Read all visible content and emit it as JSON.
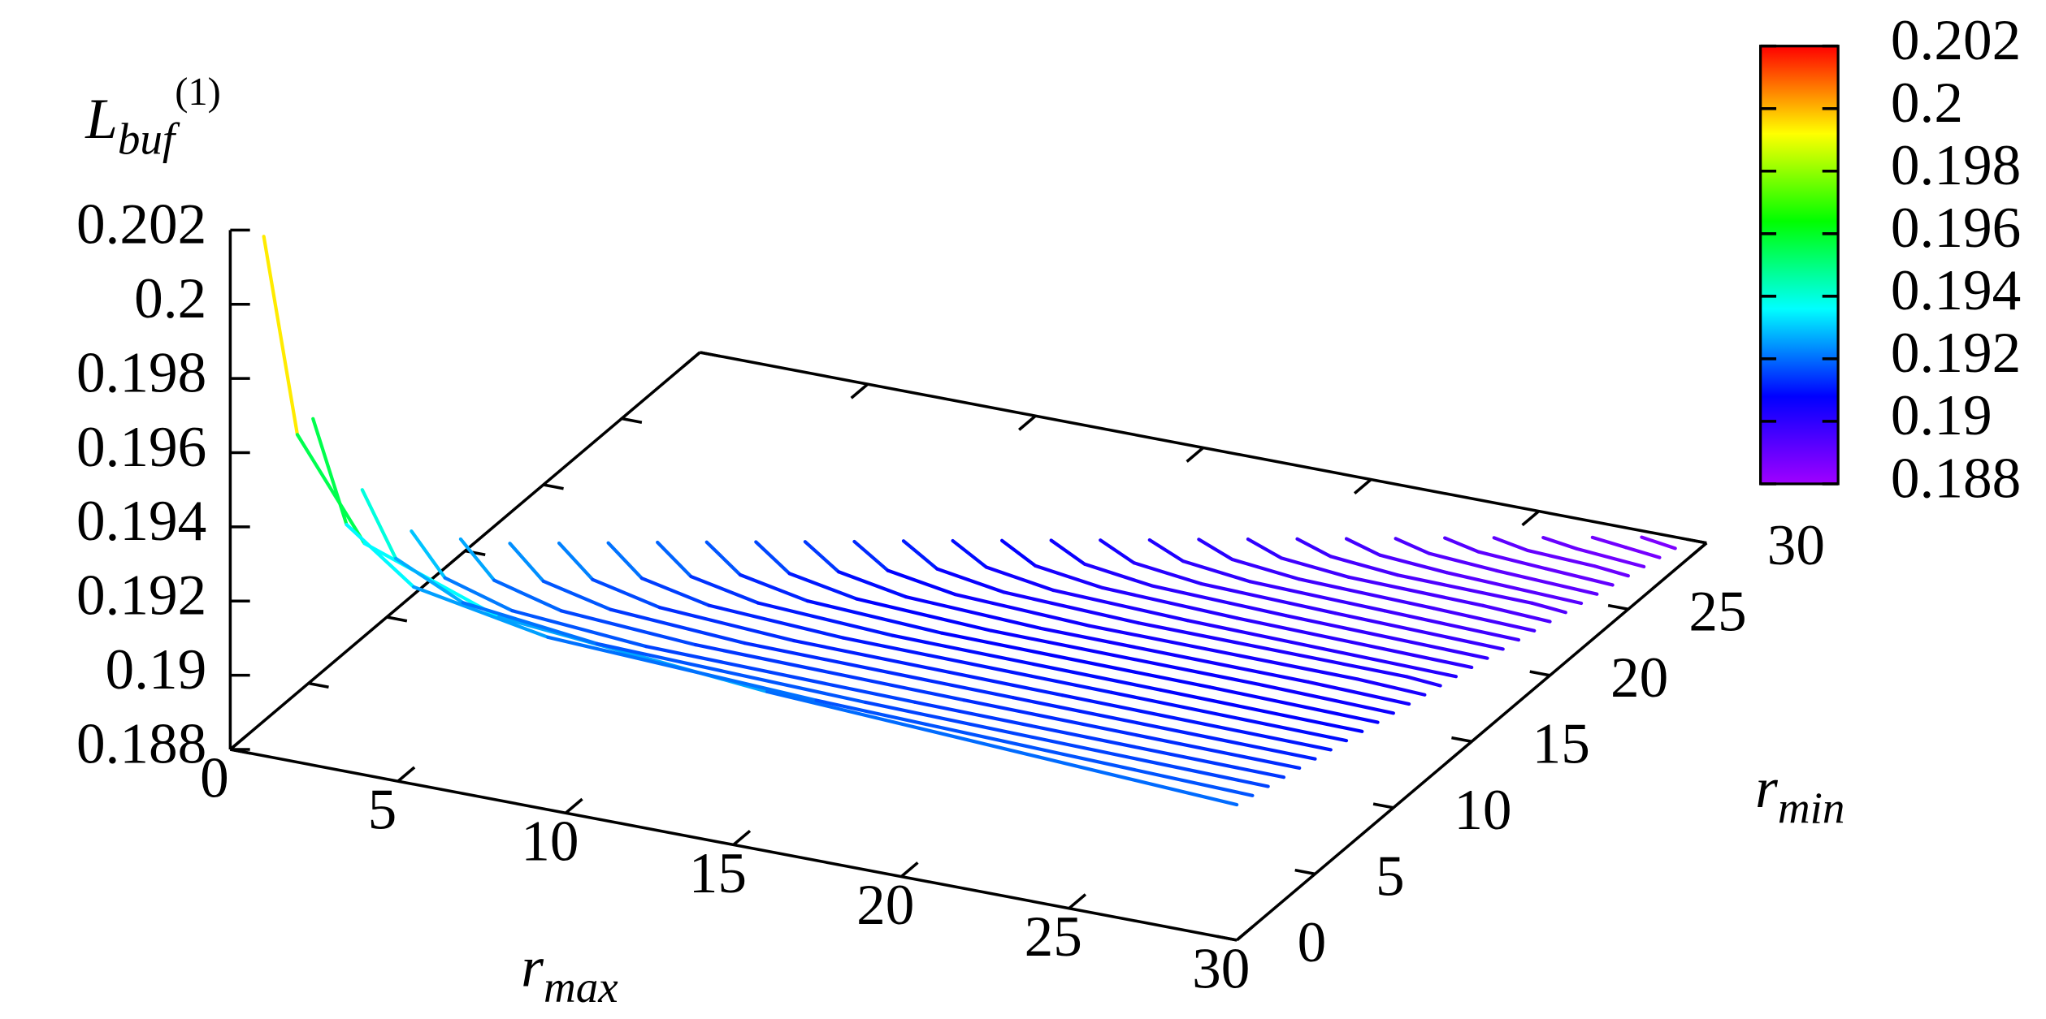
{
  "chart_data": {
    "type": "line3d",
    "xlabel": {
      "text": "r",
      "sub": "max"
    },
    "ylabel": {
      "text": "r",
      "sub": "min"
    },
    "zlabel": {
      "text": "L",
      "sub": "buf",
      "sup": "(1)"
    },
    "xlim": [
      0,
      30
    ],
    "xticks": [
      0,
      5,
      10,
      15,
      20,
      25,
      30
    ],
    "ylim": [
      0,
      30
    ],
    "yticks": [
      0,
      5,
      10,
      15,
      20,
      25,
      30
    ],
    "zlim": [
      0.188,
      0.202
    ],
    "zticks": [
      0.188,
      0.19,
      0.192,
      0.194,
      0.196,
      0.198,
      0.2,
      0.202
    ],
    "cblim": [
      0.188,
      0.202
    ],
    "cbticks": [
      0.188,
      0.19,
      0.192,
      0.194,
      0.196,
      0.198,
      0.2,
      0.202
    ],
    "palette": [
      "#a000ff",
      "#0000ff",
      "#00ffff",
      "#00ff00",
      "#ffff00",
      "#ff0000"
    ],
    "series": [
      {
        "rmin": 0,
        "x": [
          1,
          2,
          4,
          8,
          16,
          30
        ],
        "values": [
          0.202,
          0.19683,
          0.19424,
          0.19294,
          0.1923,
          0.19165
        ]
      },
      {
        "rmin": 1,
        "x": [
          2,
          3,
          5,
          9,
          17,
          30
        ],
        "values": [
          0.1969,
          0.19422,
          0.19288,
          0.19221,
          0.19188,
          0.19154
        ]
      },
      {
        "rmin": 2,
        "x": [
          3,
          4,
          6,
          10,
          18,
          30
        ],
        "values": [
          0.1948,
          0.19312,
          0.19227,
          0.19185,
          0.19164,
          0.19143
        ]
      },
      {
        "rmin": 3,
        "x": [
          4,
          5,
          7,
          11,
          19,
          30
        ],
        "values": [
          0.1935,
          0.19241,
          0.19187,
          0.19159,
          0.19146,
          0.19132
        ]
      },
      {
        "rmin": 4,
        "x": [
          5,
          6,
          8,
          12,
          20,
          30
        ],
        "values": [
          0.1931,
          0.19216,
          0.19168,
          0.19145,
          0.19133,
          0.19121
        ]
      },
      {
        "rmin": 5,
        "x": [
          6,
          7,
          9,
          13,
          21,
          30
        ],
        "values": [
          0.1928,
          0.19195,
          0.19153,
          0.19131,
          0.19121,
          0.1911
        ]
      },
      {
        "rmin": 6,
        "x": [
          7,
          8,
          10,
          14,
          22,
          30
        ],
        "values": [
          0.19262,
          0.19181,
          0.1914,
          0.19119,
          0.19109,
          0.19099
        ]
      },
      {
        "rmin": 7,
        "x": [
          8,
          9,
          11,
          15,
          23,
          30
        ],
        "values": [
          0.19244,
          0.19166,
          0.19127,
          0.19108,
          0.19098,
          0.19088
        ]
      },
      {
        "rmin": 8,
        "x": [
          9,
          10,
          12,
          16,
          24,
          30
        ],
        "values": [
          0.19227,
          0.19152,
          0.19115,
          0.19096,
          0.19086,
          0.19077
        ]
      },
      {
        "rmin": 9,
        "x": [
          10,
          11,
          13,
          17,
          25,
          30
        ],
        "values": [
          0.19209,
          0.19138,
          0.19102,
          0.19084,
          0.19075,
          0.19066
        ]
      },
      {
        "rmin": 10,
        "x": [
          11,
          12,
          14,
          18,
          26,
          30
        ],
        "values": [
          0.19191,
          0.19123,
          0.19089,
          0.19072,
          0.19064,
          0.19055
        ]
      },
      {
        "rmin": 11,
        "x": [
          12,
          13,
          15,
          19,
          27,
          30
        ],
        "values": [
          0.19173,
          0.19109,
          0.19076,
          0.1906,
          0.19052,
          0.19044
        ]
      },
      {
        "rmin": 12,
        "x": [
          13,
          14,
          16,
          20,
          28,
          30
        ],
        "values": [
          0.19155,
          0.19094,
          0.19064,
          0.19048,
          0.19041,
          0.19033
        ]
      },
      {
        "rmin": 13,
        "x": [
          14,
          15,
          17,
          21,
          29,
          30
        ],
        "values": [
          0.19138,
          0.1908,
          0.19051,
          0.19037,
          0.19029,
          0.19022
        ]
      },
      {
        "rmin": 14,
        "x": [
          15,
          16,
          18,
          22,
          30
        ],
        "values": [
          0.1912,
          0.19066,
          0.19038,
          0.19025,
          0.19011
        ]
      },
      {
        "rmin": 15,
        "x": [
          16,
          17,
          19,
          23,
          30
        ],
        "values": [
          0.19102,
          0.19051,
          0.19026,
          0.19013,
          0.19
        ]
      },
      {
        "rmin": 16,
        "x": [
          17,
          18,
          20,
          24,
          30
        ],
        "values": [
          0.19084,
          0.19037,
          0.19013,
          0.19001,
          0.18989
        ]
      },
      {
        "rmin": 17,
        "x": [
          18,
          19,
          21,
          25,
          30
        ],
        "values": [
          0.19066,
          0.19022,
          0.19,
          0.18989,
          0.18978
        ]
      },
      {
        "rmin": 18,
        "x": [
          19,
          20,
          22,
          26,
          30
        ],
        "values": [
          0.19048,
          0.19008,
          0.18987,
          0.18977,
          0.18967
        ]
      },
      {
        "rmin": 19,
        "x": [
          20,
          21,
          23,
          27,
          30
        ],
        "values": [
          0.19031,
          0.18994,
          0.18975,
          0.18965,
          0.18956
        ]
      },
      {
        "rmin": 20,
        "x": [
          21,
          22,
          24,
          28,
          30
        ],
        "values": [
          0.19013,
          0.18979,
          0.18962,
          0.18954,
          0.18945
        ]
      },
      {
        "rmin": 21,
        "x": [
          22,
          23,
          25,
          29,
          30
        ],
        "values": [
          0.18995,
          0.18965,
          0.18949,
          0.18942,
          0.18934
        ]
      },
      {
        "rmin": 22,
        "x": [
          23,
          24,
          26,
          30
        ],
        "values": [
          0.18977,
          0.1895,
          0.18937,
          0.18923
        ]
      },
      {
        "rmin": 23,
        "x": [
          24,
          25,
          27,
          30
        ],
        "values": [
          0.18959,
          0.18936,
          0.18924,
          0.18912
        ]
      },
      {
        "rmin": 24,
        "x": [
          25,
          26,
          28,
          30
        ],
        "values": [
          0.18942,
          0.18922,
          0.18911,
          0.18901
        ]
      },
      {
        "rmin": 25,
        "x": [
          26,
          27,
          29,
          30
        ],
        "values": [
          0.18924,
          0.18907,
          0.18899,
          0.1889
        ]
      },
      {
        "rmin": 26,
        "x": [
          27,
          28,
          30
        ],
        "values": [
          0.18906,
          0.18893,
          0.18879
        ]
      },
      {
        "rmin": 27,
        "x": [
          28,
          29,
          30
        ],
        "values": [
          0.18888,
          0.18878,
          0.18868
        ]
      },
      {
        "rmin": 28,
        "x": [
          29,
          30
        ],
        "values": [
          0.1887,
          0.18857
        ]
      }
    ]
  }
}
